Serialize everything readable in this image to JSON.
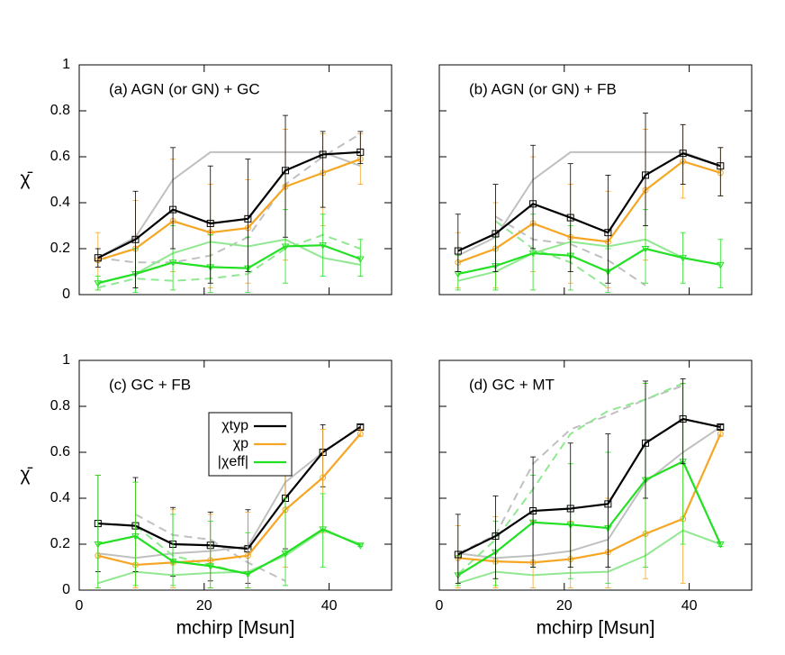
{
  "chart_data": [
    {
      "type": "line",
      "title": "(a) AGN (or GN) + GC",
      "ylabel": "χ̄",
      "x": [
        3,
        9,
        15,
        21,
        27,
        33,
        39,
        45
      ],
      "xlim": [
        0,
        50
      ],
      "xticks": [
        0,
        20,
        40
      ],
      "xtick_labels": false,
      "ylim": [
        0,
        1
      ],
      "yticks": [
        0,
        0.2,
        0.4,
        0.6,
        0.8,
        1
      ],
      "ytick_labels": true,
      "series": [
        {
          "color": "#c0c0c0",
          "style": "solid",
          "values": [
            0.16,
            0.25,
            0.5,
            0.62,
            0.62,
            0.62,
            0.62,
            0.56
          ]
        },
        {
          "color": "#c0c0c0",
          "style": "dashed",
          "values": [
            0.16,
            0.14,
            0.14,
            0.17,
            0.25,
            0.48,
            0.6,
            0.7
          ]
        },
        {
          "color": "#90e890",
          "style": "solid",
          "values": [
            0.05,
            0.09,
            0.18,
            0.23,
            0.21,
            0.24,
            0.16,
            0.13
          ]
        },
        {
          "color": "#90e890",
          "style": "dashed",
          "values": [
            0.03,
            0.07,
            0.06,
            0.07,
            0.09,
            0.2,
            0.26,
            0.2
          ]
        },
        {
          "color": "#f5a623",
          "style": "solid",
          "marker": "circle",
          "values": [
            0.15,
            0.2,
            0.32,
            0.27,
            0.29,
            0.47,
            0.53,
            0.59
          ],
          "lower": [
            0.02,
            0.03,
            0.1,
            0.03,
            0.05,
            0.15,
            0.3,
            0.48
          ],
          "upper": [
            0.27,
            0.41,
            0.59,
            0.48,
            0.5,
            0.72,
            0.7,
            0.7
          ]
        },
        {
          "color": "#22e022",
          "style": "solid",
          "marker": "triangle",
          "values": [
            0.05,
            0.09,
            0.14,
            0.12,
            0.115,
            0.21,
            0.215,
            0.155
          ],
          "lower": [
            0.02,
            0.01,
            0.02,
            0.01,
            0.01,
            0.05,
            0.08,
            0.08
          ],
          "upper": [
            0.08,
            0.2,
            0.3,
            0.26,
            0.25,
            0.37,
            0.35,
            0.24
          ]
        },
        {
          "color": "#000000",
          "style": "solid",
          "marker": "square",
          "values": [
            0.16,
            0.24,
            0.37,
            0.31,
            0.33,
            0.54,
            0.61,
            0.62
          ],
          "lower": [
            0.12,
            0.03,
            0.2,
            0.05,
            0.1,
            0.25,
            0.38,
            0.57
          ],
          "upper": [
            0.2,
            0.45,
            0.64,
            0.56,
            0.59,
            0.78,
            0.71,
            0.71
          ]
        }
      ]
    },
    {
      "type": "line",
      "title": "(b) AGN (or GN) + FB",
      "x": [
        3,
        9,
        15,
        21,
        27,
        33,
        39,
        45
      ],
      "xlim": [
        0,
        50
      ],
      "xticks": [
        0,
        20,
        40
      ],
      "xtick_labels": false,
      "ylim": [
        0,
        1
      ],
      "yticks": [
        0,
        0.2,
        0.4,
        0.6,
        0.8,
        1
      ],
      "ytick_labels": false,
      "series": [
        {
          "color": "#c0c0c0",
          "style": "solid",
          "values": [
            0.17,
            0.25,
            0.5,
            0.62,
            0.62,
            0.62,
            0.62,
            0.56
          ]
        },
        {
          "color": "#c0c0c0",
          "style": "dashed",
          "values": [
            null,
            0.34,
            0.24,
            0.22,
            0.15,
            0.04,
            null,
            null
          ]
        },
        {
          "color": "#90e890",
          "style": "solid",
          "values": [
            0.06,
            0.1,
            0.18,
            0.23,
            0.21,
            0.24,
            0.16,
            0.13
          ]
        },
        {
          "color": "#90e890",
          "style": "dashed",
          "values": [
            null,
            0.32,
            0.2,
            0.14,
            0.03,
            null,
            null,
            null
          ]
        },
        {
          "color": "#f5a623",
          "style": "solid",
          "marker": "circle",
          "values": [
            0.14,
            0.2,
            0.31,
            0.25,
            0.23,
            0.455,
            0.58,
            0.53
          ],
          "lower": [
            0.03,
            0.03,
            0.1,
            0.05,
            0.03,
            0.15,
            0.42,
            0.43
          ],
          "upper": [
            0.27,
            0.4,
            0.6,
            0.48,
            0.45,
            0.72,
            0.74,
            0.64
          ]
        },
        {
          "color": "#22e022",
          "style": "solid",
          "marker": "triangle",
          "values": [
            0.09,
            0.125,
            0.18,
            0.17,
            0.1,
            0.2,
            0.16,
            0.13
          ],
          "lower": [
            0.02,
            0.02,
            0.02,
            0.02,
            0.01,
            0.05,
            0.05,
            0.03
          ],
          "upper": [
            0.17,
            0.25,
            0.35,
            0.3,
            0.2,
            0.37,
            0.27,
            0.24
          ]
        },
        {
          "color": "#000000",
          "style": "solid",
          "marker": "square",
          "values": [
            0.19,
            0.265,
            0.395,
            0.335,
            0.27,
            0.52,
            0.615,
            0.56
          ],
          "lower": [
            0.1,
            0.1,
            0.2,
            0.1,
            0.05,
            0.3,
            0.48,
            0.43
          ],
          "upper": [
            0.35,
            0.48,
            0.65,
            0.57,
            0.52,
            0.79,
            0.74,
            0.64
          ]
        }
      ]
    },
    {
      "type": "line",
      "title": "(c) GC + FB",
      "ylabel": "χ̄",
      "xlabel": "mchirp [Msun]",
      "x": [
        3,
        9,
        15,
        21,
        27,
        33,
        39,
        45
      ],
      "xlim": [
        0,
        50
      ],
      "xticks": [
        0,
        20,
        40
      ],
      "xtick_labels": true,
      "ylim": [
        0,
        1
      ],
      "yticks": [
        0,
        0.2,
        0.4,
        0.6,
        0.8,
        1
      ],
      "ytick_labels": true,
      "legend": "center-left",
      "series": [
        {
          "color": "#c0c0c0",
          "style": "solid",
          "values": [
            0.16,
            0.14,
            0.16,
            0.17,
            0.19,
            0.47,
            0.6,
            0.71
          ]
        },
        {
          "color": "#c0c0c0",
          "style": "dashed",
          "values": [
            null,
            0.33,
            0.24,
            0.22,
            0.12,
            0.04,
            null,
            null
          ]
        },
        {
          "color": "#90e890",
          "style": "solid",
          "values": [
            0.03,
            0.08,
            0.065,
            0.075,
            0.08,
            0.15,
            0.26,
            0.2
          ]
        },
        {
          "color": "#90e890",
          "style": "dashed",
          "values": [
            null,
            0.28,
            0.15,
            0.11,
            0.07,
            null,
            null,
            null
          ]
        },
        {
          "name": "χtyp",
          "color": "#000000",
          "style": "solid",
          "marker": "square",
          "values": [
            0.29,
            0.28,
            0.2,
            0.195,
            0.18,
            0.4,
            0.6,
            0.71
          ],
          "lower": [
            0.08,
            0.08,
            0.06,
            0.04,
            0.03,
            0.18,
            0.45,
            0.7
          ],
          "upper": [
            0.5,
            0.49,
            0.36,
            0.34,
            0.35,
            0.7,
            0.72,
            0.72
          ]
        },
        {
          "name": "χp",
          "color": "#f5a623",
          "style": "solid",
          "marker": "circle",
          "values": [
            0.15,
            0.11,
            0.12,
            0.13,
            0.15,
            0.35,
            0.49,
            0.68
          ],
          "lower": [
            0.01,
            0.01,
            0.01,
            0.01,
            0.01,
            0.1,
            0.25,
            0.67
          ],
          "upper": [
            0.5,
            0.47,
            0.35,
            0.33,
            0.34,
            0.68,
            0.7,
            0.7
          ]
        },
        {
          "name": "|χeff|",
          "color": "#22e022",
          "style": "solid",
          "marker": "triangle",
          "values": [
            0.2,
            0.235,
            0.125,
            0.105,
            0.07,
            0.16,
            0.265,
            0.195
          ],
          "lower": [
            0.01,
            0.02,
            0.02,
            0.01,
            0.01,
            0.02,
            0.1,
            0.19
          ],
          "upper": [
            0.5,
            0.47,
            0.33,
            0.3,
            0.25,
            0.4,
            0.42,
            0.2
          ]
        }
      ]
    },
    {
      "type": "line",
      "title": "(d) GC + MT",
      "xlabel": "mchirp [Msun]",
      "x": [
        3,
        9,
        15,
        21,
        27,
        33,
        39,
        45
      ],
      "xlim": [
        0,
        50
      ],
      "xticks": [
        0,
        20,
        40
      ],
      "xtick_labels": true,
      "ylim": [
        0,
        1
      ],
      "yticks": [
        0,
        0.2,
        0.4,
        0.6,
        0.8,
        1
      ],
      "ytick_labels": false,
      "series": [
        {
          "color": "#c0c0c0",
          "style": "solid",
          "values": [
            0.16,
            0.14,
            0.15,
            0.17,
            0.22,
            0.47,
            0.6,
            0.71
          ]
        },
        {
          "color": "#c0c0c0",
          "style": "dashed",
          "values": [
            0.16,
            0.24,
            0.55,
            0.7,
            0.76,
            0.83,
            0.89,
            null
          ]
        },
        {
          "color": "#90e890",
          "style": "solid",
          "values": [
            0.03,
            0.08,
            0.065,
            0.075,
            0.08,
            0.15,
            0.26,
            0.2
          ]
        },
        {
          "color": "#90e890",
          "style": "dashed",
          "values": [
            0.07,
            0.22,
            0.44,
            0.68,
            0.78,
            0.83,
            0.9,
            null
          ]
        },
        {
          "color": "#f5a623",
          "style": "solid",
          "marker": "circle",
          "values": [
            0.14,
            0.125,
            0.12,
            0.135,
            0.165,
            0.245,
            0.31,
            0.68
          ],
          "lower": [
            0.01,
            0.01,
            0.01,
            0.01,
            0.01,
            0.05,
            0.03,
            0.67
          ],
          "upper": [
            0.28,
            0.32,
            0.3,
            0.3,
            0.4,
            0.9,
            0.9,
            0.7
          ]
        },
        {
          "color": "#22e022",
          "style": "solid",
          "marker": "triangle",
          "values": [
            0.065,
            0.165,
            0.295,
            0.285,
            0.27,
            0.48,
            0.56,
            0.2
          ],
          "lower": [
            0.02,
            0.02,
            0.1,
            0.05,
            0.03,
            0.1,
            0.2,
            0.19
          ],
          "upper": [
            0.15,
            0.3,
            0.5,
            0.55,
            0.6,
            0.9,
            0.9,
            0.21
          ]
        },
        {
          "color": "#000000",
          "style": "solid",
          "marker": "square",
          "values": [
            0.155,
            0.235,
            0.345,
            0.355,
            0.375,
            0.64,
            0.745,
            0.71
          ],
          "lower": [
            0.03,
            0.05,
            0.1,
            0.1,
            0.1,
            0.4,
            0.55,
            0.7
          ],
          "upper": [
            0.33,
            0.41,
            0.58,
            0.64,
            0.68,
            0.91,
            0.92,
            0.72
          ]
        }
      ]
    }
  ]
}
